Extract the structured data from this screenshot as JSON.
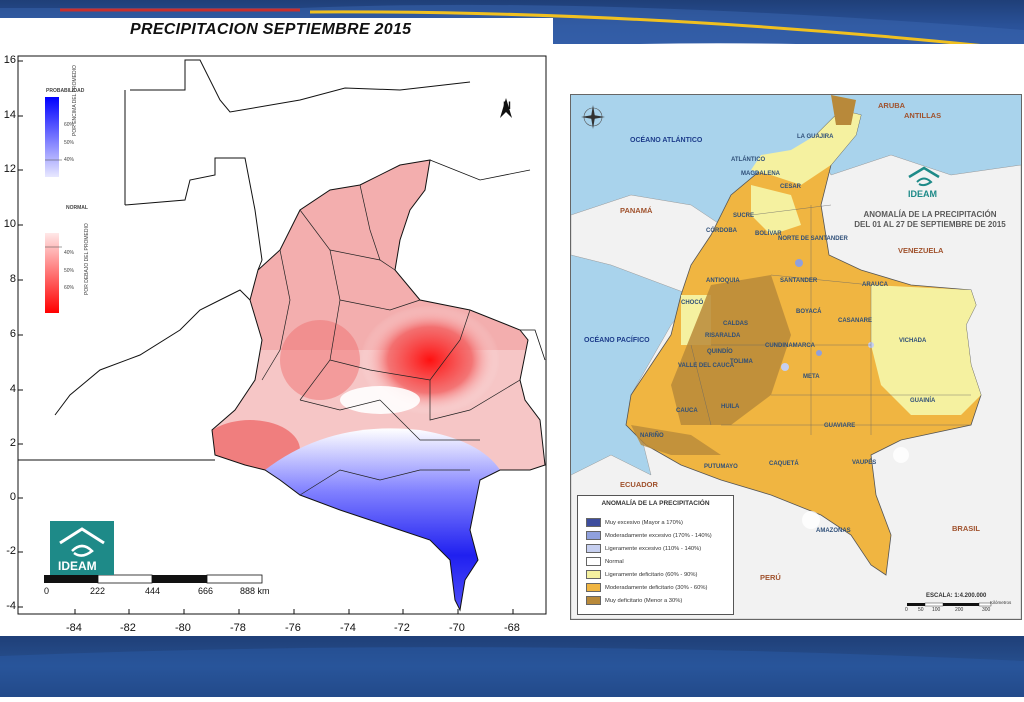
{
  "left_map": {
    "title": "PRECIPITACION SEPTIEMBRE 2015",
    "y_ticks": [
      "16",
      "14",
      "12",
      "10",
      "8",
      "6",
      "4",
      "2",
      "0",
      "-2",
      "-4"
    ],
    "x_ticks": [
      "-84",
      "-82",
      "-80",
      "-78",
      "-76",
      "-74",
      "-72",
      "-70",
      "-68"
    ],
    "legend": {
      "probabilidad_label": "PROBABILIDAD",
      "above_label": "POR ENCIMA DEL PROMEDIO",
      "above_ticks": [
        "60%",
        "50%",
        "40%"
      ],
      "normal_label": "NORMAL",
      "below_label": "POR DEBAJO DEL PROMEDIO",
      "below_ticks": [
        "40%",
        "50%",
        "60%"
      ]
    },
    "scale_ticks": [
      "0",
      "222",
      "444",
      "666",
      "888 km"
    ],
    "north_letter": "N",
    "logo_text": "IDEAM",
    "colors": {
      "wet": "#0000ff",
      "dry": "#ff0000",
      "normal": "#ffffff"
    }
  },
  "right_map": {
    "title_line1": "ANOMALÍA DE LA PRECIPITACIÓN",
    "title_line2": "DEL 01 AL 27 DE SEPTIEMBRE DE 2015",
    "logo_text": "IDEAM",
    "oceans": [
      "OCÉANO ATLÁNTICO",
      "OCÉANO PACÍFICO"
    ],
    "countries": [
      "ARUBA",
      "ANTILLAS",
      "PANAMÁ",
      "VENEZUELA",
      "ECUADOR",
      "PERÚ",
      "BRASIL"
    ],
    "departments": [
      "LA GUAJIRA",
      "ATLÁNTICO",
      "MAGDALENA",
      "CESAR",
      "SUCRE",
      "BOLÍVAR",
      "CÓRDOBA",
      "NORTE DE SANTANDER",
      "ANTIOQUIA",
      "SANTANDER",
      "ARAUCA",
      "CHOCÓ",
      "BOYACÁ",
      "CASANARE",
      "CALDAS",
      "RISARALDA",
      "QUINDÍO",
      "CUNDINAMARCA",
      "VICHADA",
      "TOLIMA",
      "VALLE DEL CAUCA",
      "META",
      "CAUCA",
      "HUILA",
      "GUAINÍA",
      "GUAVIARE",
      "NARIÑO",
      "PUTUMAYO",
      "CAQUETÁ",
      "VAUPÉS",
      "AMAZONAS"
    ],
    "legend_title": "ANOMALÍA DE LA PRECIPITACIÓN",
    "legend_items": [
      {
        "label": "Muy excesivo (Mayor a 170%)",
        "color": "#3d4d9e"
      },
      {
        "label": "Moderadamente excesivo (170% - 140%)",
        "color": "#8fa0dd"
      },
      {
        "label": "Ligeramente excesivo (110% - 140%)",
        "color": "#c6cff0"
      },
      {
        "label": "Normal",
        "color": "#ffffff"
      },
      {
        "label": "Ligeramente deficitario (60% - 90%)",
        "color": "#f5f1a0"
      },
      {
        "label": "Moderadamente deficitario (30% - 60%)",
        "color": "#f0b541"
      },
      {
        "label": "Muy deficitario (Menor a 30%)",
        "color": "#b8893a"
      }
    ],
    "scale_label": "ESCALA: 1:4.200.000",
    "scale_ticks": [
      "0",
      "50",
      "100",
      "200",
      "300"
    ],
    "scale_unit": "Kilómetros"
  }
}
